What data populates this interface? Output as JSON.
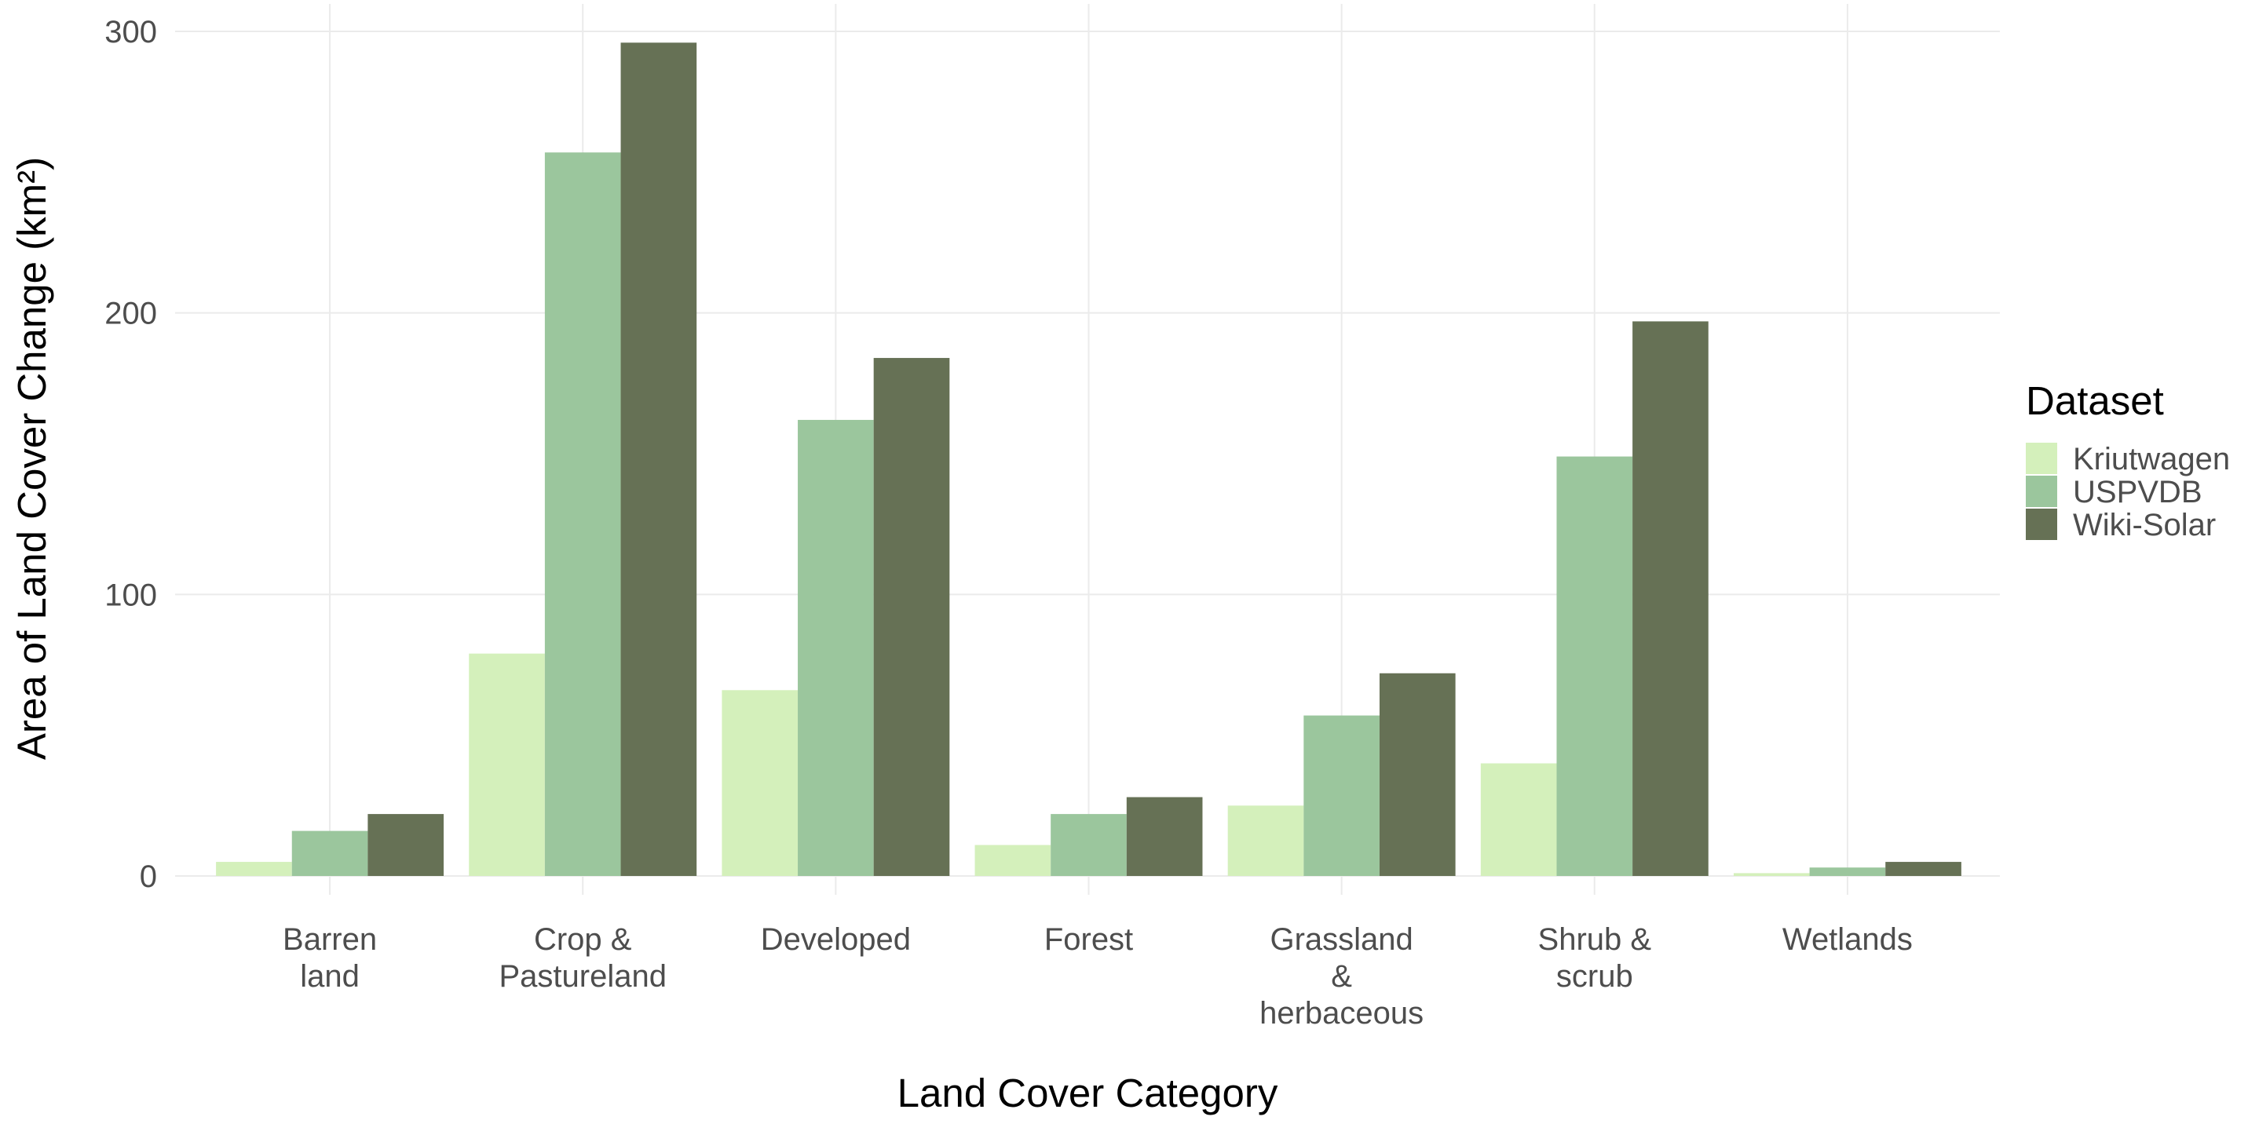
{
  "chart_data": {
    "type": "bar",
    "x_label": "Land Cover Category",
    "y_label": "Area of Land Cover Change (km²)",
    "legend_title": "Dataset",
    "categories": [
      "Barren\nland",
      "Crop &\nPastureland",
      "Developed",
      "Forest",
      "Grassland\n&\nherbaceous",
      "Shrub &\nscrub",
      "Wetlands"
    ],
    "series": [
      {
        "name": "Kriutwagen",
        "color": "#d4f0bb",
        "values": [
          5,
          79,
          66,
          11,
          25,
          40,
          1
        ]
      },
      {
        "name": "USPVDB",
        "color": "#9bc69d",
        "values": [
          16,
          257,
          162,
          22,
          57,
          149,
          3
        ]
      },
      {
        "name": "Wiki-Solar",
        "color": "#667155",
        "values": [
          22,
          296,
          184,
          28,
          72,
          197,
          5
        ]
      }
    ],
    "ylim": [
      0,
      300
    ],
    "yticks": [
      0,
      100,
      200,
      300
    ],
    "grid": true,
    "legend": "right"
  }
}
